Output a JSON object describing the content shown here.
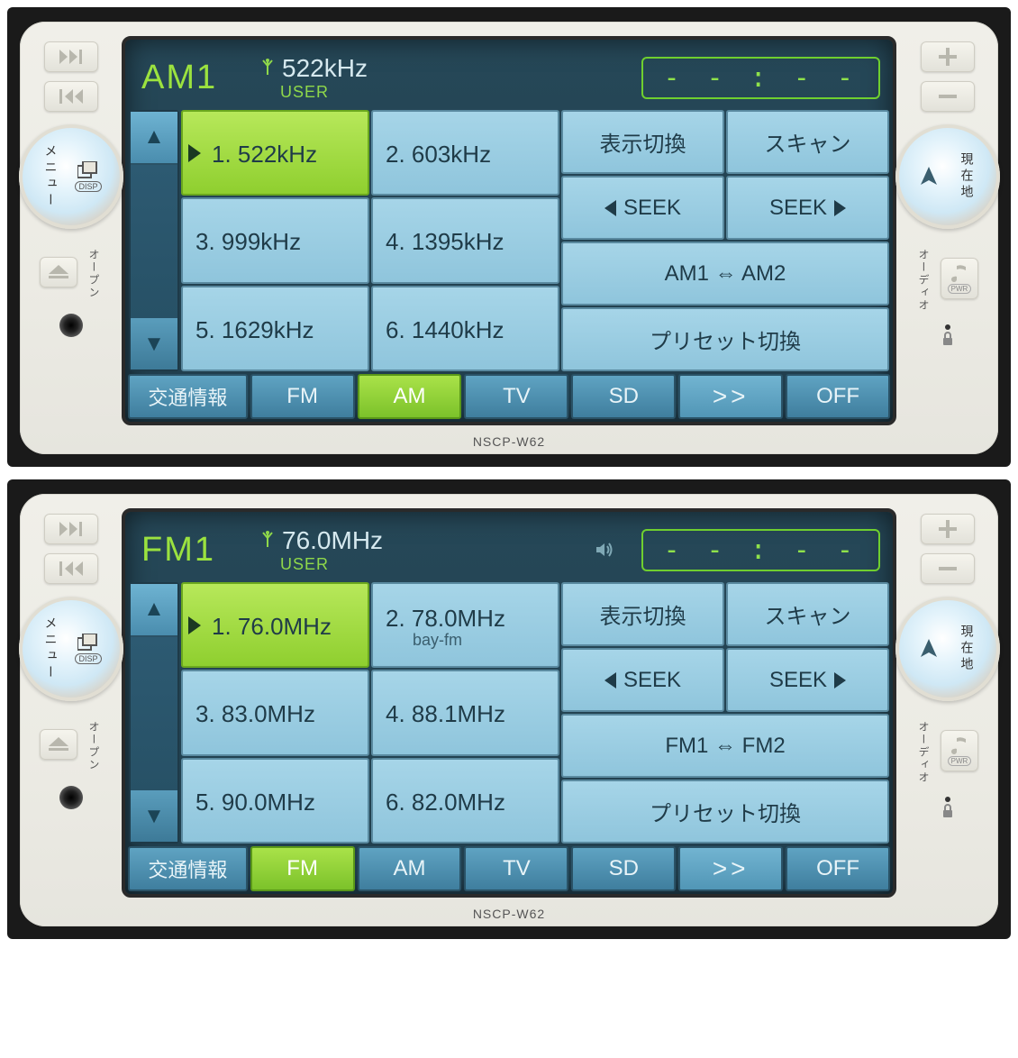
{
  "model": "NSCP-W62",
  "hw": {
    "left": {
      "menu_label": "メニュー",
      "disp_label": "DISP",
      "open_label": "オープン"
    },
    "right": {
      "loc_label": "現在地",
      "audio_label": "オーディオ",
      "pwr_label": "PWR"
    }
  },
  "clock": "- - : - -",
  "common": {
    "user": "USER",
    "disp_switch": "表示切換",
    "scan": "スキャン",
    "seek": "SEEK",
    "preset_switch": "プリセット切換",
    "sources": {
      "traffic": "交通情報",
      "fm": "FM",
      "am": "AM",
      "tv": "TV",
      "sd": "SD",
      "more": ">>",
      "off": "OFF"
    }
  },
  "units": [
    {
      "band": "AM1",
      "freq": "522kHz",
      "show_speaker": false,
      "band_switch": "AM1 ⇔ AM2",
      "active_source": "am",
      "presets": [
        {
          "n": "1.",
          "f": "522kHz",
          "sub": "",
          "active": true
        },
        {
          "n": "2.",
          "f": "603kHz",
          "sub": ""
        },
        {
          "n": "3.",
          "f": "999kHz",
          "sub": ""
        },
        {
          "n": "4.",
          "f": "1395kHz",
          "sub": ""
        },
        {
          "n": "5.",
          "f": "1629kHz",
          "sub": ""
        },
        {
          "n": "6.",
          "f": "1440kHz",
          "sub": ""
        }
      ]
    },
    {
      "band": "FM1",
      "freq": "76.0MHz",
      "show_speaker": true,
      "band_switch": "FM1 ⇔ FM2",
      "active_source": "fm",
      "presets": [
        {
          "n": "1.",
          "f": "76.0MHz",
          "sub": "",
          "active": true
        },
        {
          "n": "2.",
          "f": "78.0MHz",
          "sub": "bay-fm"
        },
        {
          "n": "3.",
          "f": "83.0MHz",
          "sub": ""
        },
        {
          "n": "4.",
          "f": "88.1MHz",
          "sub": ""
        },
        {
          "n": "5.",
          "f": "90.0MHz",
          "sub": ""
        },
        {
          "n": "6.",
          "f": "82.0MHz",
          "sub": ""
        }
      ]
    }
  ]
}
